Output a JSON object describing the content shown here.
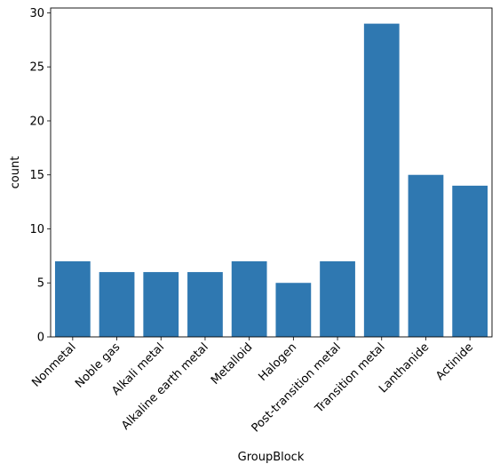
{
  "chart_data": {
    "type": "bar",
    "categories": [
      "Nonmetal",
      "Noble gas",
      "Alkali metal",
      "Alkaline earth metal",
      "Metalloid",
      "Halogen",
      "Post-transition metal",
      "Transition metal",
      "Lanthanide",
      "Actinide"
    ],
    "values": [
      7,
      6,
      6,
      6,
      7,
      5,
      7,
      29,
      15,
      14
    ],
    "title": "",
    "xlabel": "GroupBlock",
    "ylabel": "count",
    "ylim": [
      0,
      30.45
    ],
    "yticks": [
      0,
      5,
      10,
      15,
      20,
      25,
      30
    ],
    "grid": false,
    "bar_color": "#2f78b1"
  }
}
